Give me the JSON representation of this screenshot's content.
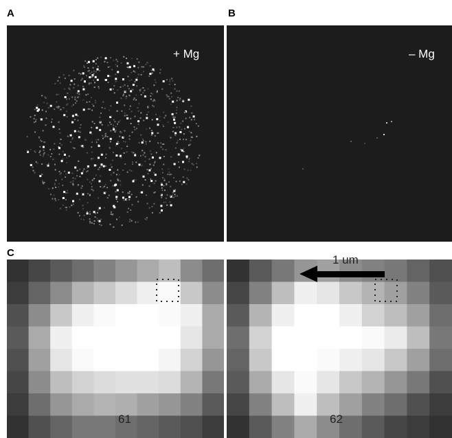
{
  "panels": {
    "a": {
      "label": "A",
      "caption": "+ Mg"
    },
    "b": {
      "label": "B",
      "caption": "– Mg"
    },
    "c": {
      "label": "C",
      "left_frame": "61",
      "right_frame": "62",
      "scale": "1 um"
    }
  }
}
